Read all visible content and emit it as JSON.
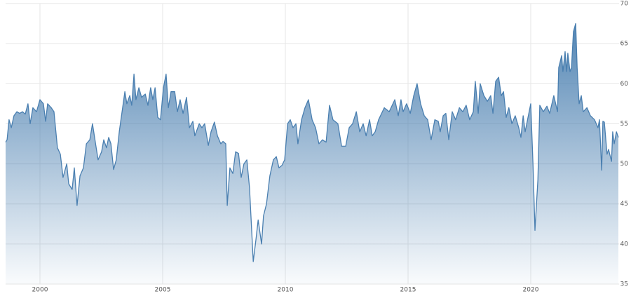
{
  "chart_data": {
    "type": "area",
    "color": "#4a7fb0",
    "grid": true,
    "x": [
      1998.6,
      1998.66,
      1998.74,
      1998.83,
      1998.94,
      1999.06,
      1999.17,
      1999.29,
      1999.4,
      1999.51,
      1999.6,
      1999.71,
      1999.86,
      2000.0,
      2000.14,
      2000.23,
      2000.31,
      2000.46,
      2000.57,
      2000.71,
      2000.83,
      2000.94,
      2001.09,
      2001.17,
      2001.31,
      2001.4,
      2001.51,
      2001.63,
      2001.77,
      2001.89,
      2002.03,
      2002.14,
      2002.29,
      2002.37,
      2002.51,
      2002.6,
      2002.71,
      2002.8,
      2002.89,
      2003.0,
      2003.11,
      2003.23,
      2003.37,
      2003.46,
      2003.54,
      2003.66,
      2003.74,
      2003.83,
      2003.91,
      2004.03,
      2004.14,
      2004.29,
      2004.4,
      2004.51,
      2004.6,
      2004.69,
      2004.8,
      2004.91,
      2005.03,
      2005.14,
      2005.23,
      2005.34,
      2005.49,
      2005.6,
      2005.71,
      2005.83,
      2005.97,
      2006.09,
      2006.23,
      2006.31,
      2006.49,
      2006.6,
      2006.71,
      2006.86,
      2006.97,
      2007.11,
      2007.23,
      2007.37,
      2007.46,
      2007.57,
      2007.63,
      2007.74,
      2007.86,
      2007.97,
      2008.09,
      2008.2,
      2008.31,
      2008.43,
      2008.54,
      2008.69,
      2008.8,
      2008.89,
      2009.03,
      2009.11,
      2009.23,
      2009.37,
      2009.51,
      2009.63,
      2009.74,
      2009.86,
      2009.97,
      2010.09,
      2010.2,
      2010.31,
      2010.43,
      2010.51,
      2010.66,
      2010.8,
      2010.94,
      2011.09,
      2011.23,
      2011.37,
      2011.51,
      2011.66,
      2011.8,
      2011.94,
      2012.14,
      2012.29,
      2012.46,
      2012.6,
      2012.74,
      2012.89,
      2013.03,
      2013.17,
      2013.29,
      2013.43,
      2013.54,
      2013.66,
      2013.8,
      2014.03,
      2014.23,
      2014.46,
      2014.6,
      2014.71,
      2014.8,
      2014.94,
      2015.09,
      2015.23,
      2015.37,
      2015.51,
      2015.66,
      2015.8,
      2015.94,
      2016.09,
      2016.23,
      2016.31,
      2016.43,
      2016.54,
      2016.66,
      2016.8,
      2016.94,
      2017.09,
      2017.23,
      2017.37,
      2017.51,
      2017.66,
      2017.74,
      2017.86,
      2017.94,
      2018.09,
      2018.23,
      2018.37,
      2018.46,
      2018.57,
      2018.69,
      2018.8,
      2018.89,
      2019.0,
      2019.11,
      2019.23,
      2019.37,
      2019.51,
      2019.6,
      2019.69,
      2019.77,
      2020.0,
      2020.09,
      2020.17,
      2020.29,
      2020.37,
      2020.51,
      2020.66,
      2020.77,
      2020.94,
      2021.09,
      2021.14,
      2021.26,
      2021.31,
      2021.4,
      2021.46,
      2021.51,
      2021.6,
      2021.66,
      2021.74,
      2021.83,
      2021.89,
      2021.97,
      2022.06,
      2022.14,
      2022.29,
      2022.43,
      2022.6,
      2022.74,
      2022.8,
      2022.89,
      2022.94,
      2023.0,
      2023.11,
      2023.17,
      2023.29,
      2023.34,
      2023.4,
      2023.49,
      2023.57
    ],
    "values": [
      52.7,
      53,
      55.5,
      54.5,
      56,
      56.5,
      56.3,
      56.5,
      56.2,
      57.5,
      55,
      57,
      56.5,
      58,
      57.5,
      55.3,
      57.5,
      57,
      56.5,
      52,
      51.2,
      48.3,
      50,
      47.5,
      46.8,
      49.5,
      44.8,
      48.5,
      49.5,
      52.5,
      53,
      55,
      52,
      50.5,
      51.5,
      53,
      52,
      53.3,
      52.5,
      49.3,
      50.5,
      54,
      57,
      59,
      57.5,
      58.5,
      57.3,
      61.2,
      58,
      59.5,
      58.3,
      58.7,
      57.3,
      59.5,
      58,
      59.5,
      55.8,
      55.5,
      59.5,
      61.2,
      57,
      59,
      59,
      56.5,
      58,
      56.3,
      58.3,
      54.5,
      55.3,
      53.5,
      55,
      54.5,
      55,
      52.3,
      54,
      55.2,
      53.5,
      52.5,
      52.8,
      52.5,
      44.8,
      49.5,
      48.8,
      51.5,
      51.3,
      48.3,
      50,
      50.5,
      47,
      37.8,
      40.5,
      43,
      40,
      43.5,
      45,
      48.5,
      50.5,
      50.9,
      49.5,
      49.8,
      50.5,
      55,
      55.5,
      54.5,
      55,
      52.5,
      55.5,
      57,
      58,
      55.5,
      54.5,
      52.5,
      53,
      52.7,
      57.3,
      55.5,
      55,
      52.2,
      52.2,
      54.5,
      55,
      56.5,
      54,
      55,
      53.5,
      55.5,
      53.5,
      54,
      55.5,
      57,
      56.5,
      58,
      56,
      58,
      56.5,
      57.5,
      56.3,
      58.5,
      60,
      57.5,
      56,
      55.5,
      53,
      55.5,
      55.3,
      54,
      56,
      56.3,
      53,
      56.5,
      55.5,
      57,
      56.5,
      57.3,
      55.5,
      56.5,
      60.3,
      56.3,
      60,
      58.5,
      57.8,
      58.5,
      56.3,
      60.3,
      60.8,
      58.5,
      59,
      55.8,
      57,
      55,
      56,
      54.5,
      53.3,
      56,
      54,
      57.5,
      50,
      41.7,
      48,
      57.3,
      56.5,
      57.2,
      56.3,
      58.5,
      56.5,
      62,
      63.5,
      61.5,
      64,
      61.5,
      63.8,
      61.5,
      62,
      66.5,
      67.5,
      62,
      57.5,
      58.5,
      56.5,
      57,
      56,
      55.5,
      54.5,
      55.5,
      49.2,
      55.3,
      55.2,
      51.2,
      51.8,
      50.3,
      54,
      52.5,
      54,
      53.3
    ],
    "xlim": [
      1998.6,
      2023.6
    ],
    "xticks": [
      2000,
      2005,
      2010,
      2015,
      2020
    ],
    "ylim": [
      35,
      70
    ],
    "yticks": [
      35,
      40,
      45,
      50,
      55,
      60,
      65,
      70
    ]
  }
}
